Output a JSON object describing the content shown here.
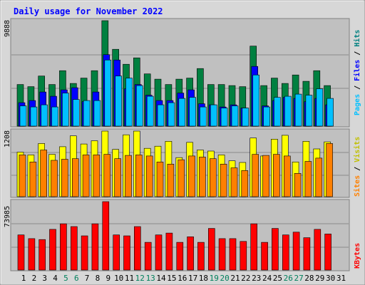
{
  "chart_data": {
    "type": "bar",
    "title": "Daily usage for November 2022",
    "days": [
      "1",
      "2",
      "3",
      "4",
      "5",
      "6",
      "7",
      "8",
      "9",
      "10",
      "11",
      "12",
      "13",
      "14",
      "15",
      "16",
      "17",
      "18",
      "19",
      "20",
      "21",
      "22",
      "23",
      "24",
      "25",
      "26",
      "27",
      "28",
      "29",
      "30",
      "31"
    ],
    "weekend_days": [
      "5",
      "6",
      "12",
      "13",
      "19",
      "20",
      "26",
      "27"
    ],
    "colors": {
      "hits": "#008040",
      "files": "#0000ff",
      "pages": "#00c0ff",
      "visits": "#ffff00",
      "sites": "#ff8000",
      "kbytes": "#ff0000",
      "title": "#0000ff",
      "weekend_label": "#00805c",
      "weekday_label": "#000000",
      "plot_bg": "#c0c0c0",
      "frame_bg": "#d7d7d7"
    },
    "panels": [
      {
        "max_label": "9888",
        "ylim": [
          0,
          9888
        ],
        "legend": [
          {
            "text": "Hits",
            "color": "#008080"
          },
          {
            "text": "Files",
            "color": "#0000ff"
          },
          {
            "text": "Pages",
            "color": "#00c0ff"
          }
        ],
        "legend_separator": " / ",
        "series": [
          {
            "name": "Hits",
            "values": [
              3900,
              3700,
              4700,
              3900,
              5200,
              4000,
              4500,
              5200,
              9888,
              7200,
              5800,
              6400,
              4900,
              4400,
              3900,
              4400,
              4500,
              5400,
              3900,
              3900,
              3800,
              3700,
              7500,
              3800,
              4500,
              4000,
              4800,
              4200,
              5200,
              3800,
              0
            ]
          },
          {
            "name": "Files",
            "values": [
              2200,
              2400,
              3200,
              2800,
              3400,
              3600,
              2300,
              3200,
              6700,
              6200,
              3500,
              3900,
              2900,
              2400,
              2400,
              3100,
              3400,
              2100,
              2000,
              1800,
              2000,
              1700,
              5600,
              1900,
              2400,
              2700,
              2600,
              2300,
              2600,
              2000,
              0
            ]
          },
          {
            "name": "Pages",
            "values": [
              1900,
              1800,
              2000,
              1800,
              3100,
              2500,
              2400,
              2400,
              6200,
              4700,
              4500,
              3800,
              2800,
              2000,
              2200,
              2600,
              2700,
              1800,
              2000,
              1700,
              1900,
              1700,
              4800,
              1800,
              2700,
              2800,
              3000,
              2900,
              3500,
              2600,
              0
            ]
          }
        ]
      },
      {
        "max_label": "1208",
        "ylim": [
          0,
          1208
        ],
        "legend": [
          {
            "text": "Visits",
            "color": "#c0c000"
          },
          {
            "text": "Sites",
            "color": "#ff8000"
          }
        ],
        "legend_separator": " / ",
        "series": [
          {
            "name": "Visits",
            "values": [
              820,
              770,
              980,
              780,
              920,
              1120,
              970,
              1030,
              1208,
              870,
              1140,
              1208,
              890,
              930,
              1020,
              720,
              1000,
              860,
              840,
              770,
              660,
              630,
              1080,
              750,
              1060,
              1130,
              640,
              1020,
              880,
              1010,
              0
            ]
          },
          {
            "name": "Sites",
            "values": [
              770,
              640,
              860,
              670,
              690,
              700,
              770,
              770,
              780,
              700,
              760,
              770,
              750,
              640,
              600,
              680,
              750,
              730,
              700,
              600,
              530,
              480,
              780,
              760,
              780,
              750,
              430,
              650,
              710,
              980,
              0
            ]
          }
        ]
      },
      {
        "max_label": "73985",
        "ylim": [
          0,
          73985
        ],
        "legend": [
          {
            "text": "KBytes",
            "color": "#ff0000"
          }
        ],
        "legend_separator": "",
        "series": [
          {
            "name": "KBytes",
            "values": [
              38000,
              34000,
              33000,
              44000,
              50000,
              47000,
              37000,
              50000,
              73985,
              38000,
              37000,
              47000,
              30000,
              38000,
              40000,
              30000,
              36000,
              30000,
              45000,
              34000,
              34000,
              31000,
              50000,
              30000,
              45000,
              38000,
              41000,
              35000,
              44000,
              39000,
              0
            ]
          }
        ]
      }
    ]
  }
}
